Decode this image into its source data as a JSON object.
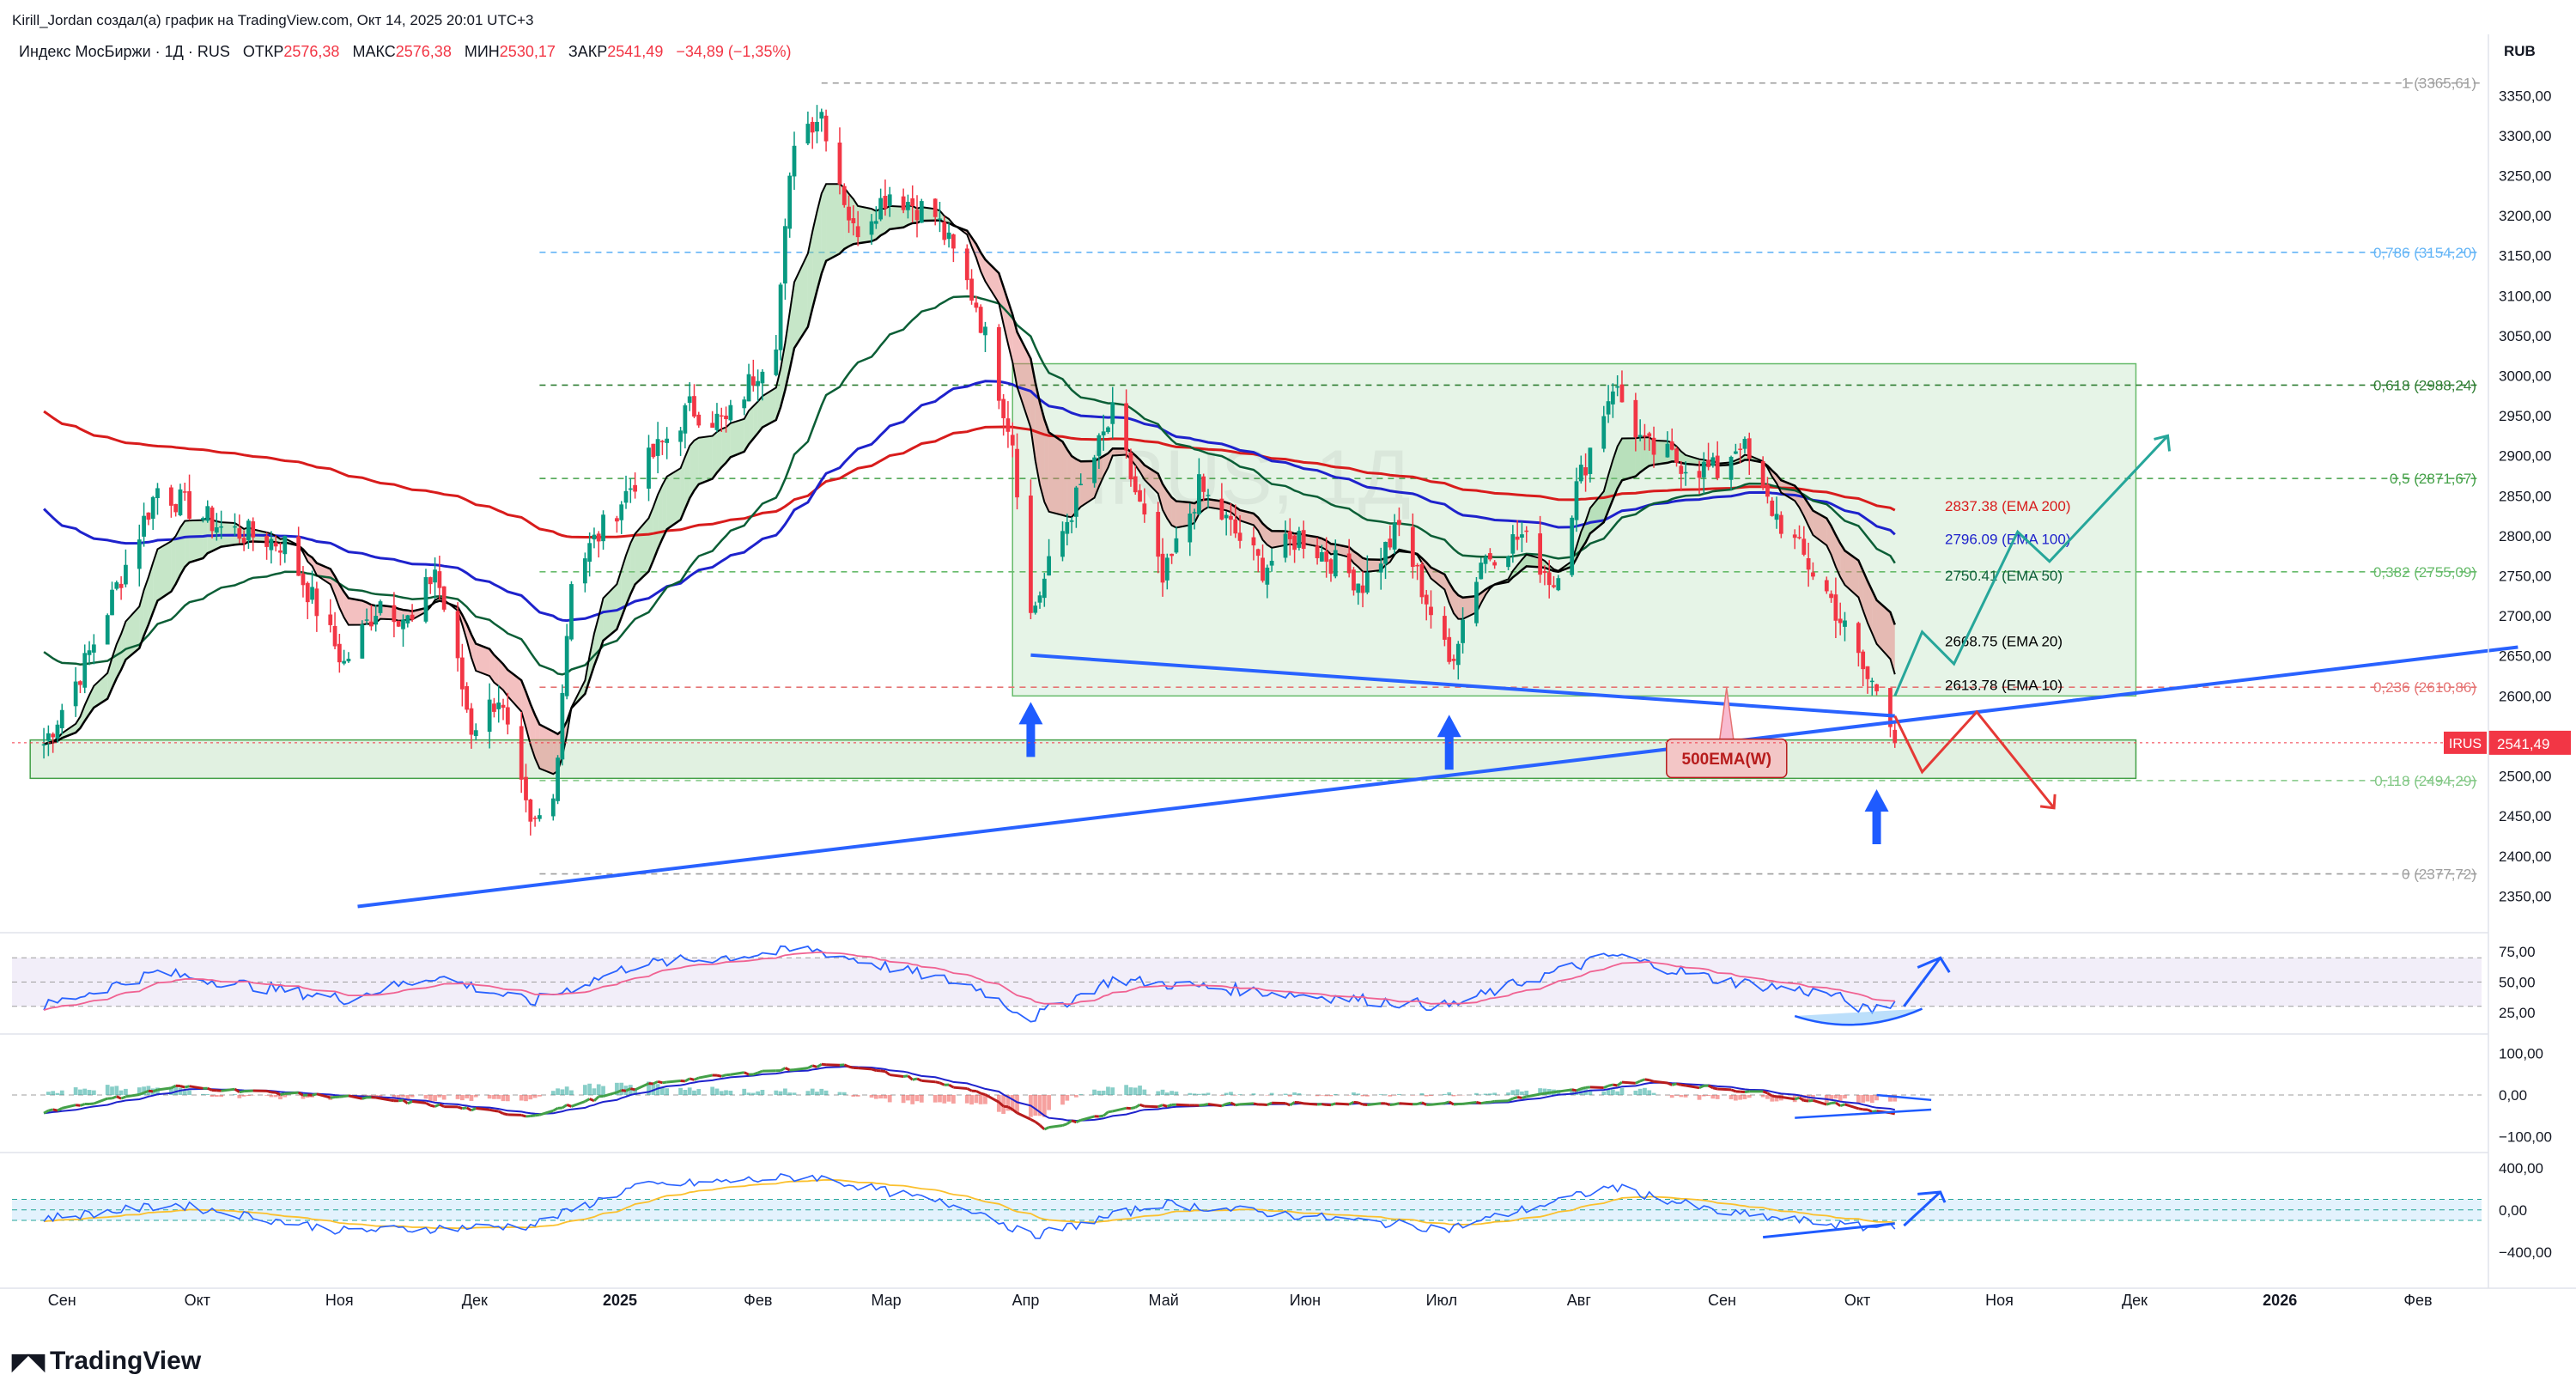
{
  "header": {
    "author_line": "Kirill_Jordan создал(а) график на TradingView.com, Окт 14, 2025 20:01 UTC+3",
    "symbol": "Индекс МосБиржи · 1Д · RUS",
    "open_label": "ОТКР",
    "open": "2576,38",
    "high_label": "МАКС",
    "high": "2576,38",
    "low_label": "МИН",
    "low": "2530,17",
    "close_label": "ЗАКР",
    "close": "2541,49",
    "change": "−34,89 (−1,35%)",
    "currency": "RUB"
  },
  "brand": "TradingView",
  "watermark": "IRUS, 1Д",
  "colors": {
    "up": "#089981",
    "down": "#f23645",
    "ema10": "#000000",
    "ema20": "#000000",
    "ema50": "#0b5e36",
    "ema100": "#1e22cc",
    "ema200": "#d81c1c",
    "trendline": "#2962ff",
    "zone": "#c8e6c9",
    "fib": "#9e9e9e"
  },
  "chart_data": [
    {
      "type": "candlestick",
      "symbol": "IRUS",
      "timeframe": "1D",
      "y_axis": {
        "ylim": [
          2330,
          3390
        ],
        "ticks": [
          "3350,00",
          "3300,00",
          "3250,00",
          "3200,00",
          "3150,00",
          "3100,00",
          "3050,00",
          "3000,00",
          "2950,00",
          "2900,00",
          "2850,00",
          "2800,00",
          "2750,00",
          "2700,00",
          "2650,00",
          "2600,00",
          "2550,00",
          "2500,00",
          "2450,00",
          "2400,00",
          "2350,00"
        ]
      },
      "x_axis": {
        "ticks": [
          "Сен",
          "Окт",
          "Ноя",
          "Дек",
          "2025",
          "Фев",
          "Мар",
          "Апр",
          "Май",
          "Июн",
          "Июл",
          "Авг",
          "Сен",
          "Окт",
          "Ноя",
          "Дек",
          "2026",
          "Фев"
        ],
        "start": "2024-08-26",
        "end": "2026-02-20"
      },
      "anchors": [
        {
          "x": "2024-09-02",
          "y": 2540
        },
        {
          "x": "2024-09-11",
          "y": 2640
        },
        {
          "x": "2024-09-27",
          "y": 2860
        },
        {
          "x": "2024-10-11",
          "y": 2810
        },
        {
          "x": "2024-10-25",
          "y": 2790
        },
        {
          "x": "2024-11-07",
          "y": 2640
        },
        {
          "x": "2024-11-15",
          "y": 2720
        },
        {
          "x": "2024-11-22",
          "y": 2690
        },
        {
          "x": "2024-11-27",
          "y": 2760
        },
        {
          "x": "2024-12-05",
          "y": 2560
        },
        {
          "x": "2024-12-11",
          "y": 2600
        },
        {
          "x": "2024-12-18",
          "y": 2430
        },
        {
          "x": "2024-12-23",
          "y": 2470
        },
        {
          "x": "2024-12-27",
          "y": 2750
        },
        {
          "x": "2025-01-10",
          "y": 2870
        },
        {
          "x": "2025-01-22",
          "y": 2960
        },
        {
          "x": "2025-01-30",
          "y": 2940
        },
        {
          "x": "2025-02-10",
          "y": 3050
        },
        {
          "x": "2025-02-14",
          "y": 3300
        },
        {
          "x": "2025-02-20",
          "y": 3330
        },
        {
          "x": "2025-02-27",
          "y": 3180
        },
        {
          "x": "2025-03-07",
          "y": 3230
        },
        {
          "x": "2025-03-17",
          "y": 3200
        },
        {
          "x": "2025-03-26",
          "y": 3090
        },
        {
          "x": "2025-04-03",
          "y": 2920
        },
        {
          "x": "2025-04-07",
          "y": 2700
        },
        {
          "x": "2025-04-15",
          "y": 2820
        },
        {
          "x": "2025-04-25",
          "y": 2950
        },
        {
          "x": "2025-05-06",
          "y": 2740
        },
        {
          "x": "2025-05-14",
          "y": 2860
        },
        {
          "x": "2025-05-28",
          "y": 2760
        },
        {
          "x": "2025-06-05",
          "y": 2800
        },
        {
          "x": "2025-06-19",
          "y": 2740
        },
        {
          "x": "2025-06-27",
          "y": 2810
        },
        {
          "x": "2025-07-03",
          "y": 2720
        },
        {
          "x": "2025-07-08",
          "y": 2640
        },
        {
          "x": "2025-07-15",
          "y": 2770
        },
        {
          "x": "2025-07-24",
          "y": 2800
        },
        {
          "x": "2025-07-31",
          "y": 2740
        },
        {
          "x": "2025-08-05",
          "y": 2860
        },
        {
          "x": "2025-08-13",
          "y": 2990
        },
        {
          "x": "2025-08-20",
          "y": 2910
        },
        {
          "x": "2025-08-29",
          "y": 2890
        },
        {
          "x": "2025-09-05",
          "y": 2880
        },
        {
          "x": "2025-09-10",
          "y": 2920
        },
        {
          "x": "2025-09-15",
          "y": 2850
        },
        {
          "x": "2025-09-22",
          "y": 2790
        },
        {
          "x": "2025-09-30",
          "y": 2720
        },
        {
          "x": "2025-10-08",
          "y": 2620
        },
        {
          "x": "2025-10-10",
          "y": 2610
        },
        {
          "x": "2025-10-13",
          "y": 2576
        },
        {
          "x": "2025-10-14",
          "y": 2541
        }
      ],
      "ema_labels": [
        {
          "name": "EMA 200",
          "value": "2837.38 (EMA 200)",
          "color": "#d81c1c"
        },
        {
          "name": "EMA 100",
          "value": "2796.09 (EMA 100)",
          "color": "#1e22cc"
        },
        {
          "name": "EMA 50",
          "value": "2750.41 (EMA 50)",
          "color": "#0b5e36"
        },
        {
          "name": "EMA 20",
          "value": "2668.75 (EMA 20)",
          "color": "#000000"
        },
        {
          "name": "EMA 10",
          "value": "2613.78 (EMA 10)",
          "color": "#000000"
        }
      ],
      "fib_levels": [
        {
          "label": "1 (3365,61)",
          "value": 3365.61,
          "color": "#9e9e9e"
        },
        {
          "label": "0,786 (3154,20)",
          "value": 3154.2,
          "color": "#64b5f6"
        },
        {
          "label": "0,618 (2988,24)",
          "value": 2988.24,
          "color": "#2e7d32"
        },
        {
          "label": "0,5 (2871,67)",
          "value": 2871.67,
          "color": "#43a047"
        },
        {
          "label": "0,382 (2755,09)",
          "value": 2755.09,
          "color": "#66bb6a"
        },
        {
          "label": "0,236 (2610,86)",
          "value": 2610.86,
          "color": "#e57373"
        },
        {
          "label": "0,118 (2494,29)",
          "value": 2494.29,
          "color": "#81c784"
        },
        {
          "label": "0 (2377,72)",
          "value": 2377.72,
          "color": "#9e9e9e"
        }
      ],
      "annotations": [
        {
          "type": "label",
          "text": "500EMA(W)"
        },
        {
          "type": "price_tag",
          "text": "IRUS",
          "value": "2541,49"
        }
      ]
    },
    {
      "type": "line",
      "panel": "RSI",
      "ylim": [
        10,
        85
      ],
      "ticks": [
        "75,00",
        "50,00",
        "25,00"
      ],
      "band": [
        30,
        70
      ],
      "anchors": [
        {
          "x": "2024-09-02",
          "y": 30
        },
        {
          "x": "2024-09-27",
          "y": 58
        },
        {
          "x": "2024-11-07",
          "y": 36
        },
        {
          "x": "2024-11-27",
          "y": 55
        },
        {
          "x": "2024-12-18",
          "y": 33
        },
        {
          "x": "2025-01-10",
          "y": 64
        },
        {
          "x": "2025-02-18",
          "y": 77
        },
        {
          "x": "2025-03-07",
          "y": 62
        },
        {
          "x": "2025-03-26",
          "y": 46
        },
        {
          "x": "2025-04-07",
          "y": 20
        },
        {
          "x": "2025-04-25",
          "y": 52
        },
        {
          "x": "2025-05-28",
          "y": 42
        },
        {
          "x": "2025-07-08",
          "y": 30
        },
        {
          "x": "2025-07-24",
          "y": 50
        },
        {
          "x": "2025-08-13",
          "y": 72
        },
        {
          "x": "2025-09-05",
          "y": 52
        },
        {
          "x": "2025-09-30",
          "y": 40
        },
        {
          "x": "2025-10-08",
          "y": 26
        },
        {
          "x": "2025-10-14",
          "y": 33
        }
      ]
    },
    {
      "type": "line",
      "panel": "MACD",
      "ylim": [
        -130,
        130
      ],
      "ticks": [
        "100,00",
        "0,00",
        "−100,00"
      ],
      "anchors": [
        {
          "x": "2024-09-02",
          "y": -40
        },
        {
          "x": "2024-10-01",
          "y": 20
        },
        {
          "x": "2024-11-15",
          "y": -10
        },
        {
          "x": "2024-12-18",
          "y": -50
        },
        {
          "x": "2025-01-15",
          "y": 30
        },
        {
          "x": "2025-02-24",
          "y": 75
        },
        {
          "x": "2025-03-26",
          "y": 10
        },
        {
          "x": "2025-04-10",
          "y": -80
        },
        {
          "x": "2025-05-01",
          "y": -25
        },
        {
          "x": "2025-06-15",
          "y": -20
        },
        {
          "x": "2025-07-15",
          "y": -20
        },
        {
          "x": "2025-08-20",
          "y": 35
        },
        {
          "x": "2025-09-15",
          "y": 5
        },
        {
          "x": "2025-10-14",
          "y": -45
        }
      ]
    },
    {
      "type": "line",
      "panel": "Oscillator",
      "ylim": [
        -500,
        480
      ],
      "ticks": [
        "400,00",
        "0,00",
        "−400,00"
      ],
      "anchors": [
        {
          "x": "2024-09-02",
          "y": -80
        },
        {
          "x": "2024-10-01",
          "y": 50
        },
        {
          "x": "2024-11-07",
          "y": -200
        },
        {
          "x": "2024-12-18",
          "y": -150
        },
        {
          "x": "2025-01-10",
          "y": 220
        },
        {
          "x": "2025-02-18",
          "y": 320
        },
        {
          "x": "2025-03-26",
          "y": 0
        },
        {
          "x": "2025-04-07",
          "y": -250
        },
        {
          "x": "2025-05-06",
          "y": 60
        },
        {
          "x": "2025-07-08",
          "y": -180
        },
        {
          "x": "2025-08-13",
          "y": 220
        },
        {
          "x": "2025-09-05",
          "y": -20
        },
        {
          "x": "2025-10-08",
          "y": -170
        },
        {
          "x": "2025-10-14",
          "y": -140
        }
      ]
    }
  ]
}
